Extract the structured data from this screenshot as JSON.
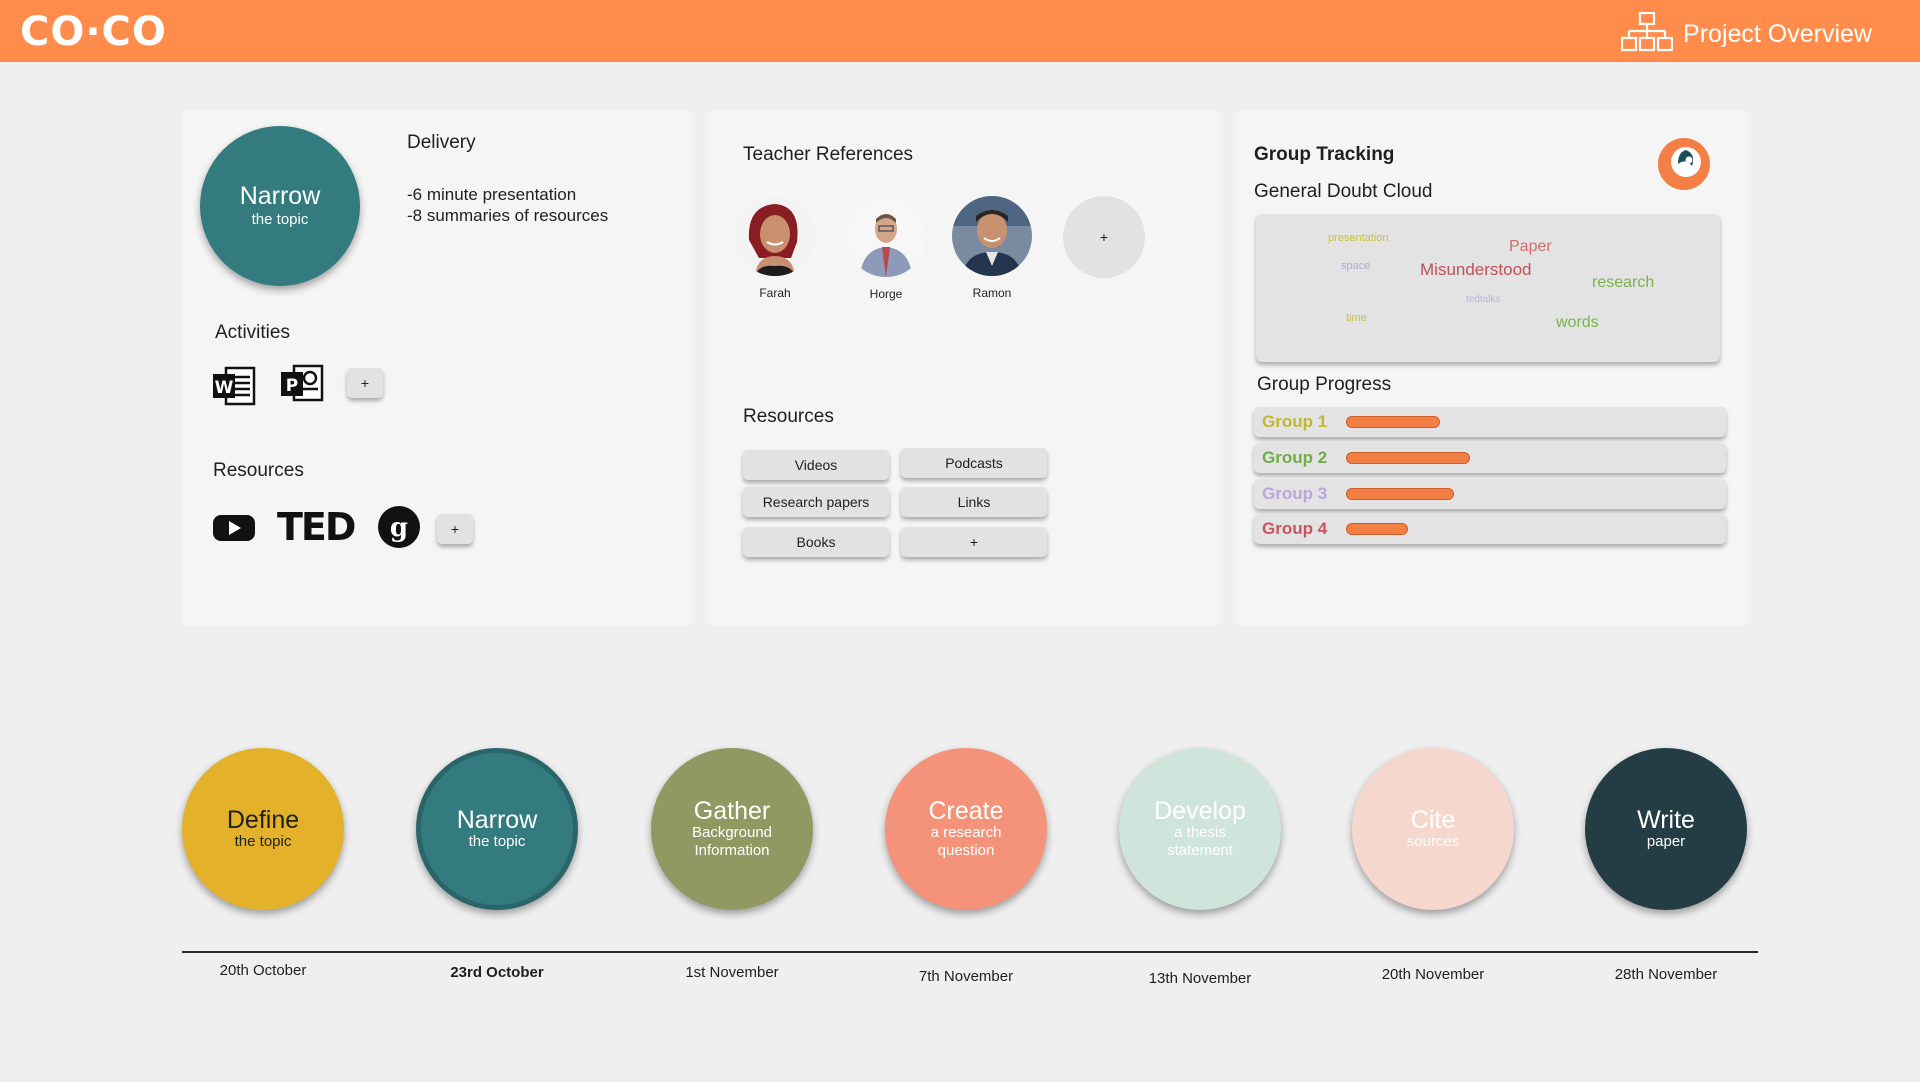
{
  "header": {
    "logo": "CO·CO",
    "project_overview_label": "Project Overview"
  },
  "colors": {
    "topbar": "#ff8c4b",
    "teal": "#347b7f",
    "progress_fill": "#f47f45"
  },
  "delivery_card": {
    "circle_title": "Narrow",
    "circle_subtitle": "the topic",
    "delivery_heading": "Delivery",
    "delivery_line1": "-6 minute presentation",
    "delivery_line2": "-8 summaries of resources",
    "activities_heading": "Activities",
    "activities_icons": [
      "word-icon",
      "powerpoint-icon"
    ],
    "activities_add": "+",
    "resources_heading": "Resources",
    "resources_icons": [
      "youtube-icon",
      "ted-icon",
      "google-scholar-icon"
    ],
    "ted_text": "TED",
    "resources_add": "+"
  },
  "teacher_card": {
    "heading": "Teacher References",
    "teachers": [
      {
        "name": "Farah"
      },
      {
        "name": "Horge"
      },
      {
        "name": "Ramon"
      }
    ],
    "add_teacher": "+",
    "resources_heading": "Resources",
    "resource_buttons": [
      "Videos",
      "Podcasts",
      "Research papers",
      "Links",
      "Books",
      "+"
    ]
  },
  "group_card": {
    "heading": "Group Tracking",
    "doubt_cloud_heading": "General Doubt Cloud",
    "cloud_words": [
      {
        "text": "presentation",
        "color": "#c7c23a"
      },
      {
        "text": "Paper",
        "color": "#d0706e"
      },
      {
        "text": "space",
        "color": "#b4a7d6"
      },
      {
        "text": "Misunderstood",
        "color": "#c0505a"
      },
      {
        "text": "research",
        "color": "#79b24f"
      },
      {
        "text": "tedtalks",
        "color": "#c2b3e0"
      },
      {
        "text": "time",
        "color": "#c7c23a"
      },
      {
        "text": "words",
        "color": "#79b24f"
      }
    ],
    "progress_heading": "Group Progress",
    "groups": [
      {
        "name": "Group 1",
        "color": "#c2b82c",
        "progress": 0.47
      },
      {
        "name": "Group 2",
        "color": "#6fae45",
        "progress": 0.62
      },
      {
        "name": "Group 3",
        "color": "#b9a6e0",
        "progress": 0.54
      },
      {
        "name": "Group 4",
        "color": "#c9535e",
        "progress": 0.31
      }
    ]
  },
  "timeline": {
    "steps": [
      {
        "title": "Define",
        "subtitle": "the topic",
        "date": "20th October",
        "bg": "#e3b12a",
        "fg": "#1f1f1f"
      },
      {
        "title": "Narrow",
        "subtitle": "the topic",
        "date": "23rd October",
        "bg": "#347b7f",
        "fg": "#ffffff"
      },
      {
        "title": "Gather",
        "subtitle": "Background Information",
        "date": "1st November",
        "bg": "#919862",
        "fg": "#ffffff"
      },
      {
        "title": "Create",
        "subtitle": "a research question",
        "date": "7th November",
        "bg": "#f5937a",
        "fg": "#ffffff"
      },
      {
        "title": "Develop",
        "subtitle": "a thesis statement",
        "date": "13th November",
        "bg": "#cfe4db",
        "fg": "#ffffff"
      },
      {
        "title": "Cite",
        "subtitle": "sources",
        "date": "20th November",
        "bg": "#f5d7cd",
        "fg": "#ffffff"
      },
      {
        "title": "Write",
        "subtitle": "paper",
        "date": "28th November",
        "bg": "#243c43",
        "fg": "#ffffff"
      }
    ]
  }
}
